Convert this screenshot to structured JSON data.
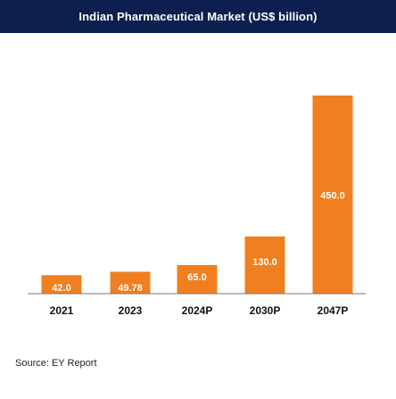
{
  "chart_data": {
    "type": "bar",
    "title": "Indian Pharmaceutical Market (US$ billion)",
    "categories": [
      "2021",
      "2023",
      "2024P",
      "2030P",
      "2047P"
    ],
    "values": [
      42.0,
      49.78,
      65.0,
      130.0,
      450.0
    ],
    "value_labels": [
      "42.0",
      "49.78",
      "65.0",
      "130.0",
      "450.0"
    ],
    "xlabel": "",
    "ylabel": "",
    "ylim": [
      0,
      450
    ],
    "grid": false,
    "legend": "none",
    "colors": {
      "bar": "#f07f1f",
      "title_bg": "#0c1f4f",
      "label": "#ffffff",
      "axis": "#777777"
    }
  },
  "source": "Source: EY Report"
}
